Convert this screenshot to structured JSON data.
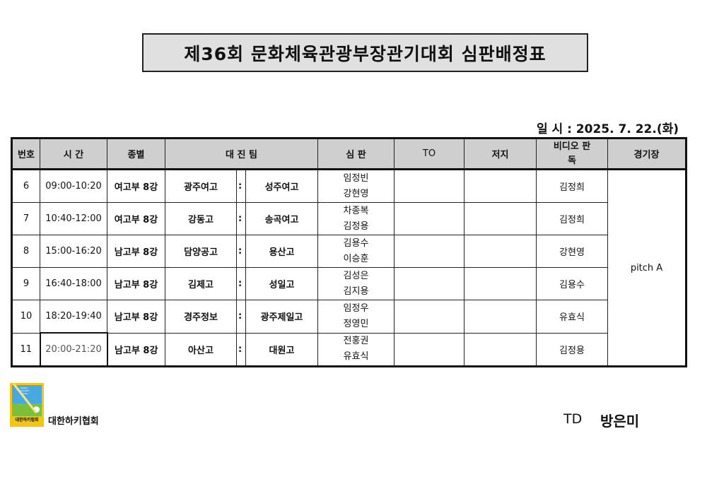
{
  "title": "제36회 문화체육관광부장관기대회 심판배정표",
  "date_label": "일 시 : 2025. 7. 22.(화)",
  "headers": {
    "no": "번호",
    "time": "시  간",
    "category": "종별",
    "teams": "대 진 팀",
    "referee": "심  판",
    "to": "TO",
    "judge": "저지",
    "video": "비디오 판독",
    "venue": "경기장"
  },
  "rows": [
    {
      "no": "6",
      "time": "09:00-10:20",
      "category": "여고부 8강",
      "team1": "광주여고",
      "sep": ":",
      "team2": "성주여고",
      "referee1": "임정빈",
      "referee2": "강현영",
      "to": "",
      "judge": "",
      "video": "김정희"
    },
    {
      "no": "7",
      "time": "10:40-12:00",
      "category": "여고부 8강",
      "team1": "강동고",
      "sep": ":",
      "team2": "송곡여고",
      "referee1": "차종복",
      "referee2": "김정용",
      "to": "",
      "judge": "",
      "video": "김정희"
    },
    {
      "no": "8",
      "time": "15:00-16:20",
      "category": "남고부 8강",
      "team1": "담양공고",
      "sep": ":",
      "team2": "용산고",
      "referee1": "김용수",
      "referee2": "이승훈",
      "to": "",
      "judge": "",
      "video": "강현영"
    },
    {
      "no": "9",
      "time": "16:40-18:00",
      "category": "남고부 8강",
      "team1": "김제고",
      "sep": ":",
      "team2": "성일고",
      "referee1": "김성은",
      "referee2": "김지용",
      "to": "",
      "judge": "",
      "video": "김용수"
    },
    {
      "no": "10",
      "time": "18:20-19:40",
      "category": "남고부 8강",
      "team1": "경주정보",
      "sep": ":",
      "team2": "광주제일고",
      "referee1": "임정우",
      "referee2": "정영민",
      "to": "",
      "judge": "",
      "video": "유효식"
    },
    {
      "no": "11",
      "time": "20:00-21:20",
      "category": "남고부 8강",
      "team1": "아산고",
      "sep": ":",
      "team2": "대원고",
      "referee1": "전홍권",
      "referee2": "유효식",
      "to": "",
      "judge": "",
      "video": "김정용"
    }
  ],
  "venue": "pitch  A",
  "footer": {
    "org": "대한하키협회",
    "logo_text": "대한하키협회",
    "logo_small": "KOREA HOCKEY ASSOCIATION",
    "td_label": "TD",
    "td_name": "방은미"
  },
  "colors": {
    "header_bg": "#cfcfcf",
    "title_bg": "#e0e0e0",
    "logo_yellow": "#f3c515",
    "logo_blue": "#49a9df",
    "logo_green": "#7cbf3b"
  }
}
